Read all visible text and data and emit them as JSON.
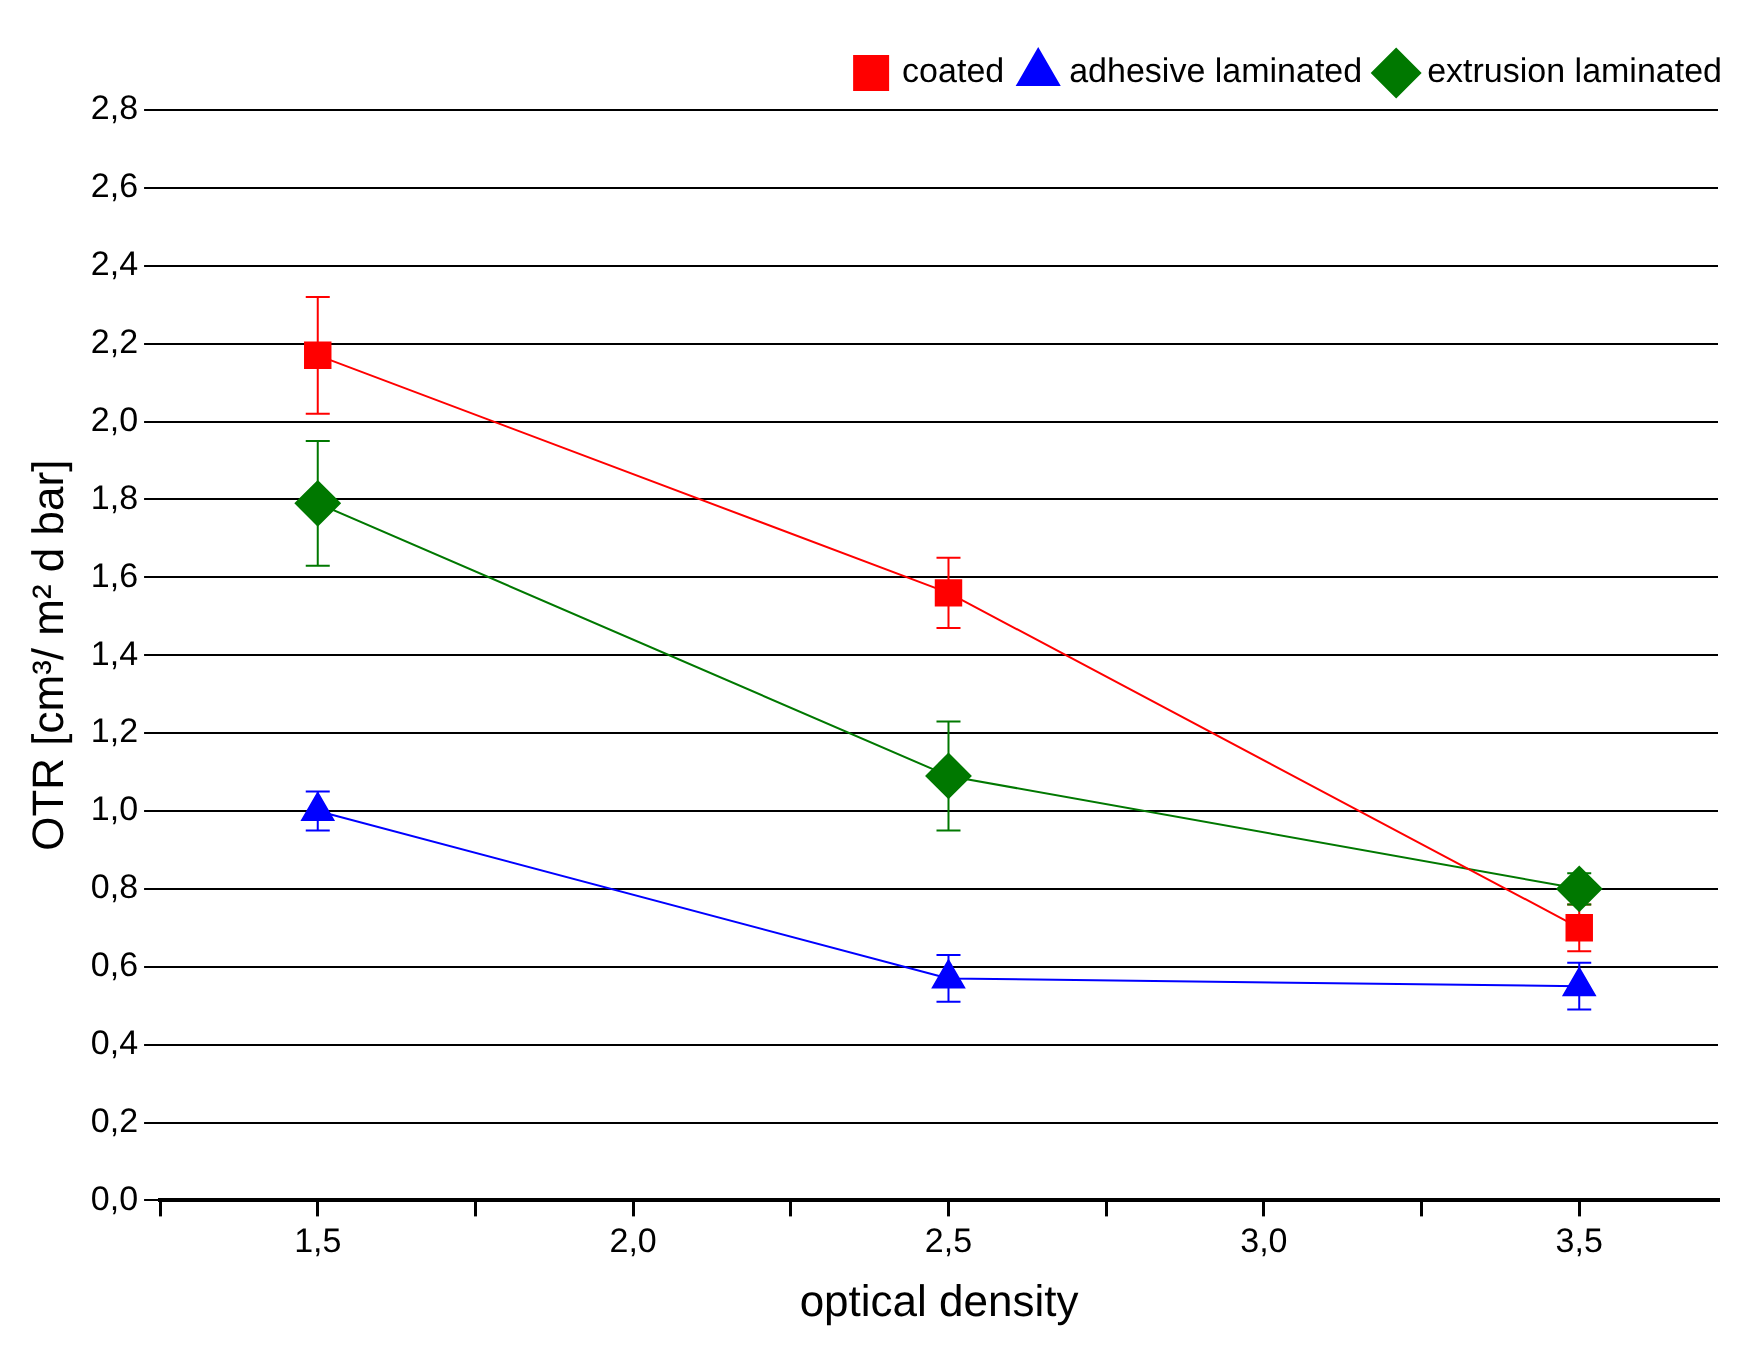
{
  "chart_data": {
    "type": "line",
    "xlabel": "optical density",
    "ylabel": "OTR [cm³/ m² d bar]",
    "x": [
      1.5,
      2.5,
      3.5
    ],
    "series": [
      {
        "name": "coated",
        "color": "#ff0000",
        "marker": "square",
        "values": [
          2.17,
          1.56,
          0.7
        ],
        "errors": [
          0.15,
          0.09,
          [
            0.64,
            0.76
          ]
        ]
      },
      {
        "name": "adhesive laminated",
        "color": "#0000ff",
        "marker": "triangle",
        "values": [
          1.0,
          0.57,
          0.55
        ],
        "errors": [
          0.05,
          0.06,
          0.06
        ]
      },
      {
        "name": "extrusion laminated",
        "color": "#007800",
        "marker": "diamond",
        "values": [
          1.79,
          1.09,
          0.8
        ],
        "errors": [
          0.16,
          0.14,
          0.04
        ]
      }
    ],
    "xlim": [
      1.25,
      3.72
    ],
    "xticks": [
      {
        "value": 1.25,
        "label": null
      },
      {
        "value": 1.5,
        "label": "1,5"
      },
      {
        "value": 1.75,
        "label": null
      },
      {
        "value": 2.0,
        "label": "2,0"
      },
      {
        "value": 2.25,
        "label": null
      },
      {
        "value": 2.5,
        "label": "2,5"
      },
      {
        "value": 2.75,
        "label": null
      },
      {
        "value": 3.0,
        "label": "3,0"
      },
      {
        "value": 3.25,
        "label": null
      },
      {
        "value": 3.5,
        "label": "3,5"
      }
    ],
    "ylim": [
      0,
      2.8
    ],
    "yticks": [
      {
        "value": 0,
        "label": "0,0"
      },
      {
        "value": 0.2,
        "label": "0,2"
      },
      {
        "value": 0.4,
        "label": "0,4"
      },
      {
        "value": 0.6,
        "label": "0,6"
      },
      {
        "value": 0.8,
        "label": "0,8"
      },
      {
        "value": 1.0,
        "label": "1,0"
      },
      {
        "value": 1.2,
        "label": "1,2"
      },
      {
        "value": 1.4,
        "label": "1,4"
      },
      {
        "value": 1.6,
        "label": "1,6"
      },
      {
        "value": 1.8,
        "label": "1,8"
      },
      {
        "value": 2.0,
        "label": "2,0"
      },
      {
        "value": 2.2,
        "label": "2,2"
      },
      {
        "value": 2.4,
        "label": "2,4"
      },
      {
        "value": 2.6,
        "label": "2,6"
      },
      {
        "value": 2.8,
        "label": "2,8"
      }
    ],
    "grid": "y",
    "legend": "top right",
    "line_style": "solid"
  }
}
